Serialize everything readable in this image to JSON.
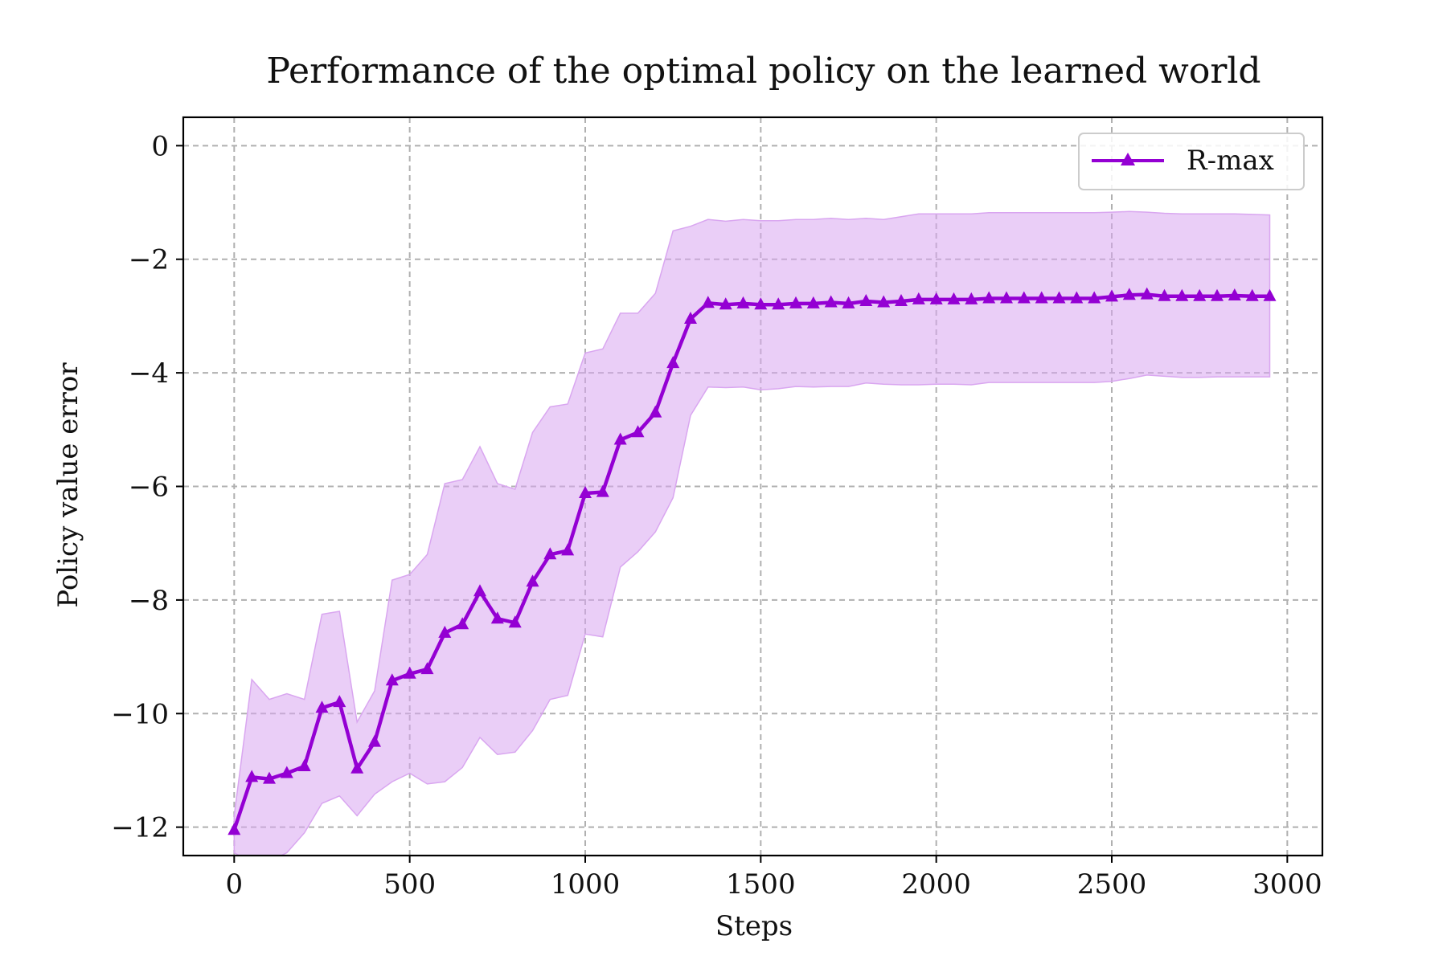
{
  "colors": {
    "line": "#9400D3",
    "band": "#D9A6F0",
    "grid": "#b0b0b0",
    "axis": "#000000"
  },
  "chart_data": {
    "type": "line",
    "title": "Performance of the optimal policy on the learned world",
    "xlabel": "Steps",
    "ylabel": "Policy value error",
    "xlim": [
      -145,
      3100
    ],
    "ylim": [
      -12.5,
      0.5
    ],
    "xticks": [
      0,
      500,
      1000,
      1500,
      2000,
      2500,
      3000
    ],
    "xtick_labels": [
      "0",
      "500",
      "1000",
      "1500",
      "2000",
      "2500",
      "3000"
    ],
    "yticks": [
      0,
      -2,
      -4,
      -6,
      -8,
      -10,
      -12
    ],
    "ytick_labels": [
      "0",
      "−2",
      "−4",
      "−6",
      "−8",
      "−10",
      "−12"
    ],
    "grid": true,
    "legend_position": "top-right",
    "series": [
      {
        "name": "R-max",
        "marker": "triangle",
        "x": [
          0,
          50,
          100,
          150,
          200,
          250,
          300,
          350,
          400,
          450,
          500,
          550,
          600,
          650,
          700,
          750,
          800,
          850,
          900,
          950,
          1000,
          1050,
          1100,
          1150,
          1200,
          1250,
          1300,
          1350,
          1400,
          1450,
          1500,
          1550,
          1600,
          1650,
          1700,
          1750,
          1800,
          1850,
          1900,
          1950,
          2000,
          2050,
          2100,
          2150,
          2200,
          2250,
          2300,
          2350,
          2400,
          2450,
          2500,
          2550,
          2600,
          2650,
          2700,
          2750,
          2800,
          2850,
          2900,
          2950
        ],
        "y": [
          -12.05,
          -11.12,
          -11.15,
          -11.05,
          -10.93,
          -9.9,
          -9.8,
          -10.97,
          -10.5,
          -9.42,
          -9.3,
          -9.22,
          -8.58,
          -8.43,
          -7.85,
          -8.33,
          -8.4,
          -7.68,
          -7.2,
          -7.13,
          -6.12,
          -6.1,
          -5.18,
          -5.05,
          -4.7,
          -3.83,
          -3.05,
          -2.77,
          -2.8,
          -2.78,
          -2.8,
          -2.8,
          -2.78,
          -2.78,
          -2.76,
          -2.78,
          -2.74,
          -2.76,
          -2.74,
          -2.71,
          -2.71,
          -2.71,
          -2.71,
          -2.69,
          -2.69,
          -2.69,
          -2.69,
          -2.69,
          -2.69,
          -2.69,
          -2.66,
          -2.63,
          -2.62,
          -2.65,
          -2.65,
          -2.65,
          -2.65,
          -2.64,
          -2.65,
          -2.65
        ],
        "band_upper": [
          -11.8,
          -9.4,
          -9.75,
          -9.65,
          -9.75,
          -8.25,
          -8.2,
          -10.15,
          -9.6,
          -7.65,
          -7.55,
          -7.2,
          -5.95,
          -5.88,
          -5.3,
          -5.95,
          -6.05,
          -5.05,
          -4.6,
          -4.55,
          -3.65,
          -3.58,
          -2.95,
          -2.95,
          -2.6,
          -1.5,
          -1.42,
          -1.3,
          -1.33,
          -1.3,
          -1.32,
          -1.32,
          -1.3,
          -1.3,
          -1.28,
          -1.3,
          -1.28,
          -1.3,
          -1.25,
          -1.2,
          -1.2,
          -1.2,
          -1.2,
          -1.18,
          -1.18,
          -1.18,
          -1.18,
          -1.18,
          -1.18,
          -1.18,
          -1.17,
          -1.16,
          -1.17,
          -1.19,
          -1.2,
          -1.2,
          -1.2,
          -1.2,
          -1.21,
          -1.22
        ],
        "band_lower": [
          -12.45,
          -12.62,
          -12.6,
          -12.45,
          -12.1,
          -11.58,
          -11.45,
          -11.8,
          -11.42,
          -11.2,
          -11.05,
          -11.24,
          -11.2,
          -10.95,
          -10.42,
          -10.72,
          -10.68,
          -10.3,
          -9.75,
          -9.68,
          -8.6,
          -8.65,
          -7.42,
          -7.15,
          -6.8,
          -6.2,
          -4.75,
          -4.25,
          -4.26,
          -4.25,
          -4.3,
          -4.28,
          -4.24,
          -4.25,
          -4.24,
          -4.24,
          -4.18,
          -4.2,
          -4.21,
          -4.21,
          -4.2,
          -4.2,
          -4.21,
          -4.17,
          -4.17,
          -4.17,
          -4.17,
          -4.17,
          -4.17,
          -4.17,
          -4.15,
          -4.1,
          -4.04,
          -4.06,
          -4.08,
          -4.08,
          -4.07,
          -4.07,
          -4.07,
          -4.07
        ]
      }
    ]
  }
}
